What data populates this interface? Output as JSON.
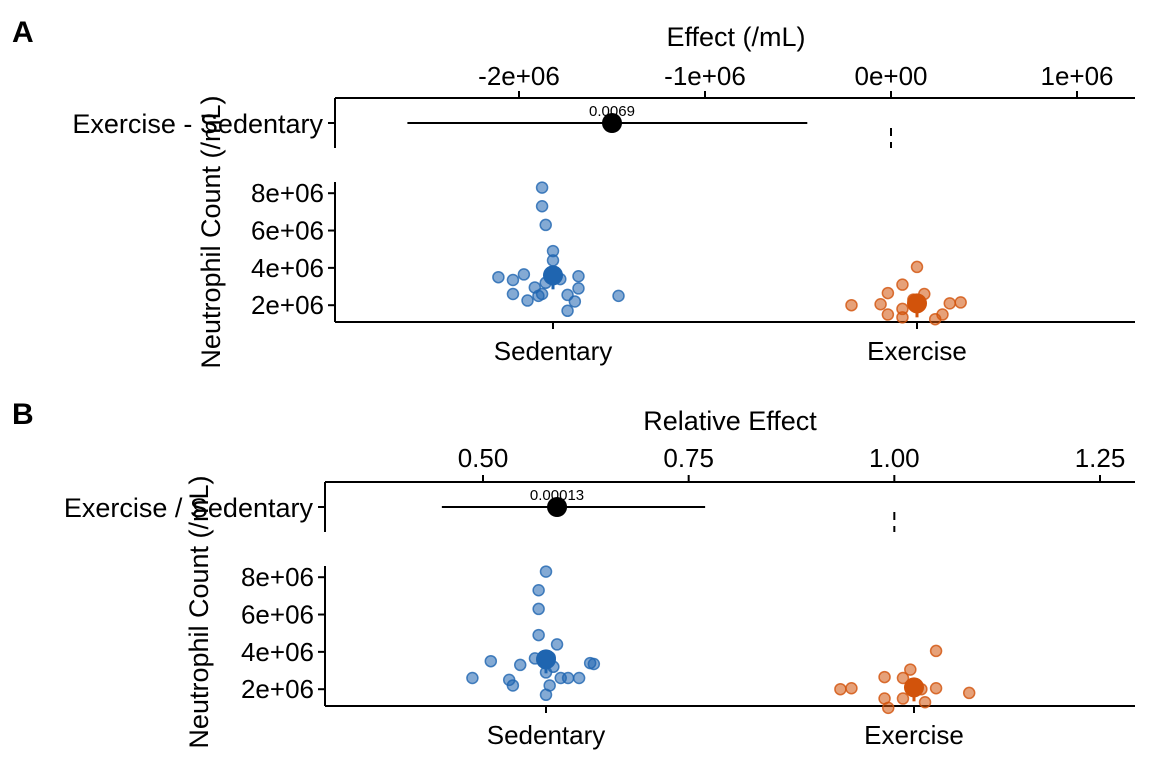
{
  "panels": [
    {
      "label": "A",
      "effect_axis_title": "Effect (/mL)",
      "effect_ticks": [
        {
          "value": -2000000,
          "label": "-2e+06"
        },
        {
          "value": -1000000,
          "label": "-1e+06"
        },
        {
          "value": 0,
          "label": "0e+00"
        },
        {
          "value": 1000000,
          "label": "1e+06"
        }
      ],
      "effect_xlim": [
        -3000000,
        1300000
      ],
      "reference_value": 0,
      "contrast_label": "Exercise - Sedentary",
      "contrast_estimate": -1500000,
      "contrast_ci": [
        -2600000,
        -450000
      ],
      "contrast_annotation": "0.0069",
      "ylabel": "Neutrophil Count (/mL)",
      "y_ticks": [
        {
          "value": 2000000,
          "label": "2e+06"
        },
        {
          "value": 4000000,
          "label": "4e+06"
        },
        {
          "value": 6000000,
          "label": "6e+06"
        },
        {
          "value": 8000000,
          "label": "8e+06"
        }
      ],
      "ylim": [
        1100000,
        8600000
      ],
      "groups": [
        {
          "name": "Sedentary",
          "color": "#1f65b0",
          "mean": 3600000,
          "points": [
            {
              "dx": -0.15,
              "y": 3500000
            },
            {
              "dx": -0.11,
              "y": 3350000
            },
            {
              "dx": -0.08,
              "y": 3650000
            },
            {
              "dx": -0.05,
              "y": 2950000
            },
            {
              "dx": -0.02,
              "y": 3200000
            },
            {
              "dx": 0.02,
              "y": 3400000
            },
            {
              "dx": 0.07,
              "y": 3550000
            },
            {
              "dx": -0.11,
              "y": 2600000
            },
            {
              "dx": -0.07,
              "y": 2250000
            },
            {
              "dx": -0.04,
              "y": 2500000
            },
            {
              "dx": -0.03,
              "y": 2600000
            },
            {
              "dx": 0.04,
              "y": 2550000
            },
            {
              "dx": 0.06,
              "y": 2200000
            },
            {
              "dx": 0.07,
              "y": 2900000
            },
            {
              "dx": 0.04,
              "y": 1700000
            },
            {
              "dx": 0.18,
              "y": 2500000
            },
            {
              "dx": 0.0,
              "y": 4900000
            },
            {
              "dx": 0.0,
              "y": 4400000
            },
            {
              "dx": -0.02,
              "y": 6300000
            },
            {
              "dx": -0.03,
              "y": 7300000
            },
            {
              "dx": -0.03,
              "y": 8300000
            }
          ]
        },
        {
          "name": "Exercise",
          "color": "#d2530b",
          "mean": 2100000,
          "points": [
            {
              "dx": -0.18,
              "y": 2000000
            },
            {
              "dx": -0.1,
              "y": 2050000
            },
            {
              "dx": -0.08,
              "y": 2650000
            },
            {
              "dx": -0.04,
              "y": 3100000
            },
            {
              "dx": -0.04,
              "y": 1800000
            },
            {
              "dx": -0.08,
              "y": 1500000
            },
            {
              "dx": -0.04,
              "y": 1350000
            },
            {
              "dx": -0.01,
              "y": 2300000
            },
            {
              "dx": 0.02,
              "y": 2600000
            },
            {
              "dx": 0.05,
              "y": 1250000
            },
            {
              "dx": 0.07,
              "y": 1500000
            },
            {
              "dx": 0.09,
              "y": 2100000
            },
            {
              "dx": 0.12,
              "y": 2150000
            },
            {
              "dx": 0.0,
              "y": 4050000
            }
          ]
        }
      ]
    },
    {
      "label": "B",
      "effect_axis_title": "Relative Effect",
      "effect_ticks": [
        {
          "value": 0.5,
          "label": "0.50"
        },
        {
          "value": 0.75,
          "label": "0.75"
        },
        {
          "value": 1.0,
          "label": "1.00"
        },
        {
          "value": 1.25,
          "label": "1.25"
        }
      ],
      "effect_xlim": [
        0.3,
        1.3
      ],
      "reference_value": 1.0,
      "contrast_label": "Exercise / Sedentary",
      "contrast_estimate": 0.59,
      "contrast_ci": [
        0.45,
        0.77
      ],
      "contrast_annotation": "0.00013",
      "ylabel": "Neutrophil Count (/mL)",
      "y_ticks": [
        {
          "value": 2000000,
          "label": "2e+06"
        },
        {
          "value": 4000000,
          "label": "4e+06"
        },
        {
          "value": 6000000,
          "label": "6e+06"
        },
        {
          "value": 8000000,
          "label": "8e+06"
        }
      ],
      "ylim": [
        1100000,
        8600000
      ],
      "groups": [
        {
          "name": "Sedentary",
          "color": "#1f65b0",
          "mean": 3600000,
          "points": [
            {
              "dx": -0.2,
              "y": 2600000
            },
            {
              "dx": -0.15,
              "y": 3500000
            },
            {
              "dx": -0.1,
              "y": 2500000
            },
            {
              "dx": -0.09,
              "y": 2200000
            },
            {
              "dx": -0.07,
              "y": 3300000
            },
            {
              "dx": -0.03,
              "y": 3650000
            },
            {
              "dx": 0.0,
              "y": 2900000
            },
            {
              "dx": 0.01,
              "y": 3700000
            },
            {
              "dx": 0.02,
              "y": 3200000
            },
            {
              "dx": 0.04,
              "y": 2600000
            },
            {
              "dx": 0.01,
              "y": 2200000
            },
            {
              "dx": 0.0,
              "y": 1700000
            },
            {
              "dx": 0.06,
              "y": 2600000
            },
            {
              "dx": 0.09,
              "y": 2600000
            },
            {
              "dx": 0.12,
              "y": 3400000
            },
            {
              "dx": 0.13,
              "y": 3350000
            },
            {
              "dx": 0.03,
              "y": 4400000
            },
            {
              "dx": -0.02,
              "y": 4900000
            },
            {
              "dx": -0.02,
              "y": 6300000
            },
            {
              "dx": -0.02,
              "y": 7300000
            },
            {
              "dx": 0.0,
              "y": 8300000
            }
          ]
        },
        {
          "name": "Exercise",
          "color": "#d2530b",
          "mean": 2100000,
          "points": [
            {
              "dx": -0.2,
              "y": 2000000
            },
            {
              "dx": -0.17,
              "y": 2050000
            },
            {
              "dx": -0.08,
              "y": 2650000
            },
            {
              "dx": -0.08,
              "y": 1500000
            },
            {
              "dx": -0.07,
              "y": 1000000
            },
            {
              "dx": -0.03,
              "y": 2600000
            },
            {
              "dx": -0.03,
              "y": 1500000
            },
            {
              "dx": -0.01,
              "y": 3050000
            },
            {
              "dx": 0.02,
              "y": 2000000
            },
            {
              "dx": 0.03,
              "y": 1300000
            },
            {
              "dx": 0.06,
              "y": 2050000
            },
            {
              "dx": 0.06,
              "y": 4050000
            },
            {
              "dx": 0.15,
              "y": 1800000
            }
          ]
        }
      ]
    }
  ],
  "chart_data": [
    {
      "type": "scatter",
      "panel": "A",
      "title": "",
      "top_axis_label": "Effect (/mL)",
      "contrast": {
        "label": "Exercise - Sedentary",
        "estimate": -1500000,
        "ci_low": -2600000,
        "ci_high": -450000,
        "p_value_label": "0.0069"
      },
      "xlabel": "",
      "ylabel": "Neutrophil Count (/mL)",
      "categories": [
        "Sedentary",
        "Exercise"
      ],
      "series": [
        {
          "name": "Sedentary",
          "mean": 3600000,
          "values": [
            3500000,
            3350000,
            3650000,
            2950000,
            3200000,
            3400000,
            3550000,
            2600000,
            2250000,
            2500000,
            2600000,
            2550000,
            2200000,
            2900000,
            1700000,
            2500000,
            4900000,
            4400000,
            6300000,
            7300000,
            8300000
          ]
        },
        {
          "name": "Exercise",
          "mean": 2100000,
          "values": [
            2000000,
            2050000,
            2650000,
            3100000,
            1800000,
            1500000,
            1350000,
            2300000,
            2600000,
            1250000,
            1500000,
            2100000,
            2150000,
            4050000
          ]
        }
      ],
      "ylim": [
        1100000,
        8600000
      ],
      "grid": false
    },
    {
      "type": "scatter",
      "panel": "B",
      "title": "",
      "top_axis_label": "Relative Effect",
      "contrast": {
        "label": "Exercise / Sedentary",
        "estimate": 0.59,
        "ci_low": 0.45,
        "ci_high": 0.77,
        "p_value_label": "0.00013"
      },
      "xlabel": "",
      "ylabel": "Neutrophil Count (/mL)",
      "categories": [
        "Sedentary",
        "Exercise"
      ],
      "series": [
        {
          "name": "Sedentary",
          "mean": 3600000,
          "values": [
            2600000,
            3500000,
            2500000,
            2200000,
            3300000,
            3650000,
            2900000,
            3700000,
            3200000,
            2600000,
            2200000,
            1700000,
            2600000,
            2600000,
            3400000,
            3350000,
            4400000,
            4900000,
            6300000,
            7300000,
            8300000
          ]
        },
        {
          "name": "Exercise",
          "mean": 2100000,
          "values": [
            2000000,
            2050000,
            2650000,
            1500000,
            1000000,
            2600000,
            1500000,
            3050000,
            2000000,
            1300000,
            2050000,
            4050000,
            1800000
          ]
        }
      ],
      "ylim": [
        1100000,
        8600000
      ],
      "grid": false
    }
  ]
}
